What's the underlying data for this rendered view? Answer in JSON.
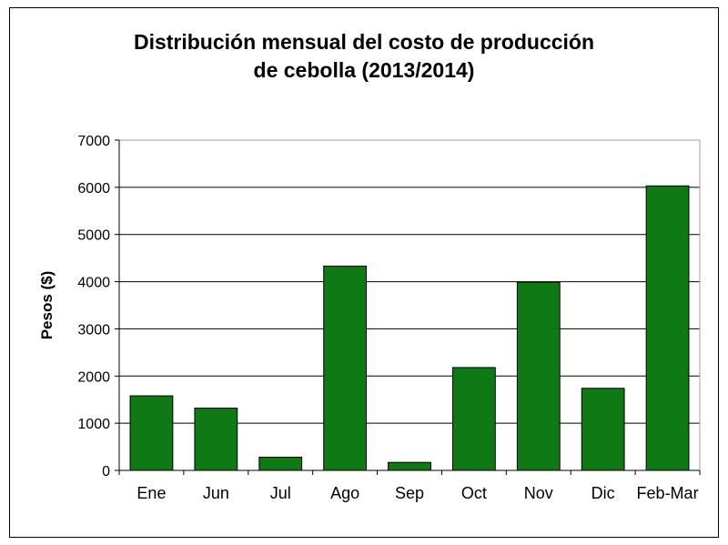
{
  "chart_data": {
    "type": "bar",
    "title": [
      "Distribución mensual del costo de producción",
      "de cebolla (2013/2014)"
    ],
    "xlabel": "",
    "ylabel": "Pesos ($)",
    "categories": [
      "Ene",
      "Jun",
      "Jul",
      "Ago",
      "Sep",
      "Oct",
      "Nov",
      "Dic",
      "Feb-Mar"
    ],
    "values": [
      1580,
      1320,
      280,
      4330,
      170,
      2180,
      3990,
      1740,
      6030
    ],
    "ylim": [
      0,
      7000
    ],
    "yticks": [
      0,
      1000,
      2000,
      3000,
      4000,
      5000,
      6000,
      7000
    ],
    "grid": true,
    "legend": "none",
    "colors": {
      "bar": "#0f7a15",
      "bar_edge": "#000000",
      "grid": "#000000",
      "plot_bg": "#ffffff",
      "frame": "#a0a0a0"
    }
  }
}
